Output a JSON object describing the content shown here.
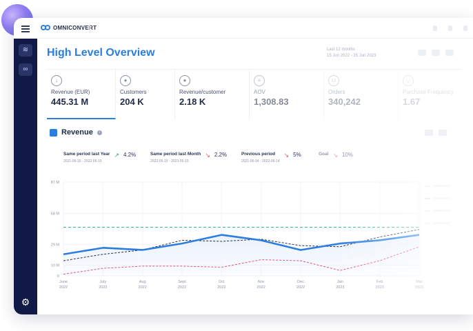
{
  "app": {
    "brand": "OMNICONVERT",
    "page_title": "High Level Overview",
    "date_range": {
      "label": "Last 12 months",
      "range": "15 Jun 2022 - 15 Jun 2023"
    }
  },
  "kpis": [
    {
      "label": "Revenue (EUR)",
      "value": "445.31 M",
      "icon": "coins-icon",
      "active": true
    },
    {
      "label": "Customers",
      "value": "204 K",
      "icon": "user-icon"
    },
    {
      "label": "Revenue/customer",
      "value": "2.18 K",
      "icon": "user-icon"
    },
    {
      "label": "AOV",
      "value": "1,308.83",
      "icon": "coins-icon"
    },
    {
      "label": "Orders",
      "value": "340,242",
      "icon": "cart-icon"
    },
    {
      "label": "Purchase Frequency",
      "value": "1.67",
      "icon": "cart-icon"
    }
  ],
  "revenue_card": {
    "title": "Revenue",
    "comparisons": [
      {
        "label": "Same period last Year",
        "dates": "2021-06-15 - 2022-06-15",
        "value": "4.2%",
        "trend": "up"
      },
      {
        "label": "Same period last Month",
        "dates": "2022-05-15 - 2023-05-15",
        "value": "2.2%",
        "trend": "down"
      },
      {
        "label": "Previous period",
        "dates": "2021-06-14 - 2022-06-14",
        "value": "5%",
        "trend": "down"
      },
      {
        "label": "Goal",
        "dates": "",
        "value": "10%",
        "trend": "down"
      }
    ]
  },
  "chart_data": {
    "type": "line",
    "x": [
      "June 2022",
      "July 2022",
      "Aug 2022",
      "Sept 2022",
      "Oct 2022",
      "Nov 2022",
      "Dec 2022",
      "Jan 2023",
      "Feb 2023",
      "Mar 2023"
    ],
    "yticks": [
      "0",
      "10 M",
      "29 M",
      "58 M",
      "87 M"
    ],
    "ylim": [
      0,
      87
    ],
    "series": [
      {
        "role": "current",
        "color": "#2b7de0",
        "values": [
          20,
          26,
          24,
          30,
          38,
          33,
          24,
          30,
          33,
          38
        ]
      },
      {
        "role": "comparison",
        "color": "#2a2f45",
        "values": [
          14,
          20,
          24,
          33,
          32,
          34,
          28,
          27,
          36,
          43
        ]
      },
      {
        "role": "previous",
        "color": "#e0557a",
        "values": [
          1.5,
          7,
          9,
          9,
          8,
          15,
          14,
          5,
          14,
          27
        ]
      },
      {
        "role": "goal",
        "color": "#27b37a",
        "values": [
          45,
          45,
          45,
          45,
          45,
          45,
          45,
          45,
          45,
          45
        ]
      }
    ],
    "grid": true,
    "legend": "right"
  }
}
